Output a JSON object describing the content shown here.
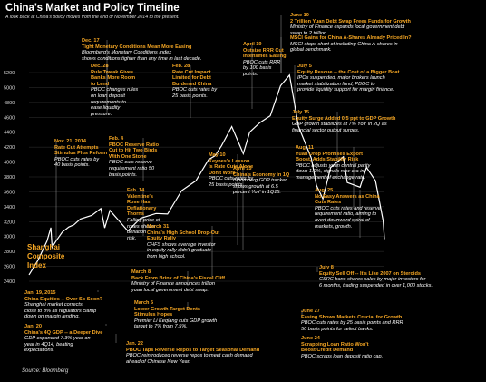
{
  "title": "China's Market and Policy Timeline",
  "subtitle": "A look back at China's policy moves from the end of November 2014 to the present.",
  "source": "Source: Bloomberg",
  "index_label": "Shanghai Composite Index",
  "colors": {
    "line": "#ffffff",
    "accent": "#f5a623",
    "grid": "#333333",
    "leader": "#bbbbbb"
  },
  "chart_data": {
    "type": "line",
    "title": "China's Market and Policy Timeline",
    "xlabel": "",
    "ylabel": "",
    "ylim": [
      2400,
      5200
    ],
    "yticks": [
      2400,
      2600,
      2800,
      3000,
      3200,
      3400,
      3600,
      3800,
      4000,
      4200,
      4400,
      4600,
      4800,
      5000,
      5200
    ],
    "grid": true,
    "series": [
      {
        "name": "Shanghai Composite Index",
        "x": [
          "2014-11-21",
          "2014-11-28",
          "2014-12-05",
          "2014-12-08",
          "2014-12-09",
          "2014-12-12",
          "2014-12-17",
          "2014-12-22",
          "2014-12-26",
          "2014-12-31",
          "2015-01-09",
          "2015-01-16",
          "2015-01-19",
          "2015-01-23",
          "2015-02-06",
          "2015-02-16",
          "2015-02-28",
          "2015-03-09",
          "2015-03-20",
          "2015-03-31",
          "2015-04-10",
          "2015-04-15",
          "2015-04-20",
          "2015-04-28",
          "2015-05-07",
          "2015-05-12",
          "2015-05-20",
          "2015-05-28",
          "2015-06-05",
          "2015-06-12",
          "2015-06-19",
          "2015-06-29",
          "2015-07-03",
          "2015-07-08",
          "2015-07-14",
          "2015-07-24",
          "2015-07-27",
          "2015-08-06",
          "2015-08-11",
          "2015-08-18",
          "2015-08-24",
          "2015-08-25"
        ],
        "values": [
          2486,
          2683,
          2938,
          3120,
          2856,
          2938,
          3061,
          3128,
          3157,
          3235,
          3285,
          3376,
          3116,
          3351,
          3076,
          3246,
          3310,
          3302,
          3617,
          3748,
          4034,
          4084,
          4217,
          4476,
          4112,
          4401,
          4529,
          4620,
          5023,
          5166,
          4478,
          4053,
          3687,
          3507,
          3925,
          4070,
          3725,
          3662,
          3928,
          3749,
          3210,
          2965
        ]
      }
    ],
    "annotations": [
      {
        "date": "Nov. 21, 2014",
        "headline": "Rate Cut Attempts Stimulus Plus Reform",
        "detail": "PBOC cuts rates by 40 basis points."
      },
      {
        "date": "Dec. 17",
        "headline": "Tight Monetary Conditions Mean More Easing",
        "detail": "Bloomberg's Monetary Conditions Index shows conditions tighter than any time in last decade."
      },
      {
        "date": "Dec. 28",
        "headline": "Rule Tweak Gives Banks More Room to Lend",
        "detail": "PBOC changes rules on loan deposit requirements to ease liquidity pressure."
      },
      {
        "date": "Jan. 19, 2015",
        "headline": "China Equities -- Over So Soon?",
        "detail": "Shanghai market corrects close to 8% as regulators clamp down on margin lending."
      },
      {
        "date": "Jan. 20",
        "headline": "China's 4Q GDP -- a Deeper Dive",
        "detail": "GDP expanded 7.3% year on year in 4Q14, beating expectations."
      },
      {
        "date": "Jan. 22",
        "headline": "PBOC Taps Reverse Repos to Target Seasonal Demand",
        "detail": "PBOC reintroduced reverse repos to meet cash demand ahead of Chinese New Year."
      },
      {
        "date": "Feb. 4",
        "headline": "PBOC Reserve Ratio Cut to Hit Two Birds With One Stone",
        "detail": "PBOC cuts reserve requirement ratio 50 basis points."
      },
      {
        "date": "Feb. 14",
        "headline": "Valentine's Rose Has Deflationary Thorns",
        "detail": "Falling price of roses shows deflation risk."
      },
      {
        "date": "Feb. 28",
        "headline": "Rate Cut Impact Limited for Debt Burdened China",
        "detail": "PBOC cuts rates by 25 basis points."
      },
      {
        "date": "March 5",
        "headline": "Lower Growth Target Dents Stimulus Hopes",
        "detail": "Premier Li Keqiang cuts GDP growth target to 7% from 7.5%."
      },
      {
        "date": "March 8",
        "headline": "Back From Brink of China's Fiscal Cliff",
        "detail": "Ministry of Finance announces trillion yuan local government debt swap."
      },
      {
        "date": "March 31",
        "headline": "China's High School Drop-Out Equity Rally",
        "detail": "CHFS shows average investor in equity rally didn't graduate from high school."
      },
      {
        "date": "April 15",
        "headline": "China's Economy in 1Q",
        "detail": "Bloomberg GDP tracker shows growth at 6.5 percent YoY in 1Q15."
      },
      {
        "date": "April 19",
        "headline": "Outsize RRR Cut Intensifies Easing",
        "detail": "PBOC cuts RRR by 100 basis points."
      },
      {
        "date": "May 10",
        "headline": "Keynes's Lesson Is Rate Cuts Alone Don't Work",
        "detail": "PBOC cuts rates by 25 basis points."
      },
      {
        "date": "June 10",
        "headline": "2 Trillion Yuan Debt Swap Frees Funds for Growth",
        "detail": "Ministry of Finance expands local government debt swap to 2 trillion."
      },
      {
        "date": "",
        "headline": "MSCI Gains for China A-Shares Already Priced In?",
        "detail": "MSCI stops short of including China A-shares in global benchmark."
      },
      {
        "date": "June 24",
        "headline": "Scrapping Loan Ratio Won't Boost Credit Demand",
        "detail": "PBOC scraps loan deposit ratio cap."
      },
      {
        "date": "June 27",
        "headline": "Easing Shows Markets Crucial for Growth",
        "detail": "PBOC cuts rates by 25 basis points and RRR 50 basis points for select banks."
      },
      {
        "date": "July 5",
        "headline": "Equity Rescue -- the Cost of a Bigger Boat",
        "detail": "IPOs suspended, major brokers launch market stabilization fund, PBOC to provide liquidity support for margin finance."
      },
      {
        "date": "July 8",
        "headline": "Equity Sell Off -- It's Like 2007 on Steroids",
        "detail": "CSRC bans shares sales by major investors for 6 months, trading suspended in over 1,000 stocks."
      },
      {
        "date": "July 15",
        "headline": "Equity Surge Added 0.5 ppt to GDP Growth",
        "detail": "GDP growth stabilizes at 7% YoY in 2Q as financial sector output surges."
      },
      {
        "date": "Aug. 11",
        "headline": "Yuan Drop Promises Export Boost, Adds Stability Risk",
        "detail": "PBOC adjusts yuan central parity down 1.9%, signals new era in management of exchange rate."
      },
      {
        "date": "Aug. 25",
        "headline": "No Easy Answers as China Cuts Rates",
        "detail": "PBOC cuts rates and reserve requirement ratio, aiming to avert downward spiral of markets, growth."
      }
    ]
  },
  "annotation_lines": [
    {
      "date": "Dec. 17",
      "headline": [
        "Tight Monetary Conditions Mean More Easing"
      ],
      "detail": [
        "Bloomberg's Monetary Conditions Index",
        "shows conditions tighter than any time in last decade."
      ]
    },
    {
      "date": "Dec. 28",
      "headline": [
        "Rule Tweak Gives",
        "Banks More Room",
        "to Lend"
      ],
      "detail": [
        "PBOC changes rules",
        "on loan deposit",
        "requirements to",
        "ease liquidity",
        "pressure."
      ]
    },
    {
      "date": "Feb. 28",
      "headline": [
        "Rate Cut Impact",
        "Limited for Debt",
        "Burdened China"
      ],
      "detail": [
        "PBOC cuts rates by",
        "25 basis points."
      ]
    },
    {
      "date": "April 19",
      "headline": [
        "Outsize RRR Cut",
        "Intensifies Easing"
      ],
      "detail": [
        "PBOC cuts RRR",
        "by 100 basis",
        "points."
      ]
    },
    {
      "date": "June 10",
      "headline": [
        "2 Trillion Yuan Debt Swap Frees Funds for Growth"
      ],
      "detail": [
        "Ministry of Finance expands local government debt",
        "swap to 2 trillion."
      ]
    },
    {
      "date": "",
      "headline": [
        "MSCI Gains for China A-Shares Already Priced In?"
      ],
      "detail": [
        "MSCI stops short of including China A-shares in",
        "global benchmark."
      ]
    },
    {
      "date": "July 5",
      "headline": [
        "Equity Rescue -- the Cost of a Bigger Boat"
      ],
      "detail": [
        "IPOs suspended, major brokers launch",
        "market stabilization fund, PBOC to",
        "provide liquidity support for margin finance."
      ]
    },
    {
      "date": "Nov. 21, 2014",
      "headline": [
        "Rate Cut Attempts",
        "Stimulus Plus Reform"
      ],
      "detail": [
        "PBOC cuts rates by",
        "40 basis points."
      ]
    },
    {
      "date": "Feb. 4",
      "headline": [
        "PBOC Reserve Ratio",
        "Cut to Hit Two Birds",
        "With One Stone"
      ],
      "detail": [
        "PBOC cuts reserve",
        "requirement ratio 50",
        "basis points."
      ]
    },
    {
      "date": "July 15",
      "headline": [
        "Equity Surge Added 0.5 ppt to GDP Growth"
      ],
      "detail": [
        "GDP growth stabilizes at 7% YoY in 2Q as",
        "financial sector output surges."
      ]
    },
    {
      "date": "May 10",
      "headline": [
        "Keynes's Lesson",
        "Is Rate Cuts Alone",
        "Don't Work"
      ],
      "detail": [
        "PBOC cuts rates by",
        "25 basis points."
      ]
    },
    {
      "date": "Aug. 11",
      "headline": [
        "Yuan Drop Promises Export",
        "Boost, Adds Stability Risk"
      ],
      "detail": [
        "PBOC adjusts yuan central parity",
        "down 1.9%, signals new era in",
        "management of exchange rate."
      ]
    },
    {
      "date": "April 15",
      "headline": [
        "China's Economy in 1Q"
      ],
      "detail": [
        "Bloomberg GDP tracker",
        "shows growth at 6.5",
        "percent YoY in 1Q15."
      ]
    },
    {
      "date": "Feb. 14",
      "headline": [
        "Valentine's",
        "Rose Has",
        "Deflationary",
        "Thorns"
      ],
      "detail": [
        "Falling price of",
        "roses shows",
        "deflation",
        "risk."
      ]
    },
    {
      "date": "March 31",
      "headline": [
        "China's High School Drop-Out",
        "Equity Rally"
      ],
      "detail": [
        "CHFS shows average investor",
        "in equity rally didn't graduate",
        "from high school."
      ]
    },
    {
      "date": "Aug. 25",
      "headline": [
        "No Easy Answers as China",
        "Cuts Rates"
      ],
      "detail": [
        "PBOC cuts rates and reserve",
        "requirement ratio, aiming to",
        "avert downward spiral of",
        "markets, growth."
      ]
    },
    {
      "date": "March 8",
      "headline": [
        "Back From Brink of China's Fiscal Cliff"
      ],
      "detail": [
        "Ministry of Finance announces trillion",
        "yuan local government debt swap."
      ]
    },
    {
      "date": "July 8",
      "headline": [
        "Equity Sell Off -- It's Like 2007 on Steroids"
      ],
      "detail": [
        "CSRC bans shares sales by major investors for",
        "6 months, trading suspended in over 1,000 stocks."
      ]
    },
    {
      "date": "Jan. 19, 2015",
      "headline": [
        "China Equities -- Over So Soon?"
      ],
      "detail": [
        "Shanghai market corrects",
        "close to 8% as regulators clamp",
        "down on margin lending."
      ]
    },
    {
      "date": "March 5",
      "headline": [
        "Lower Growth Target Dents",
        "Stimulus Hopes"
      ],
      "detail": [
        "Premier Li Keqiang cuts GDP growth",
        "target to 7% from 7.5%."
      ]
    },
    {
      "date": "June 27",
      "headline": [
        "Easing Shows Markets Crucial for Growth"
      ],
      "detail": [
        "PBOC cuts rates by 25 basis points and RRR",
        "50 basis points for select banks."
      ]
    },
    {
      "date": "Jan. 20",
      "headline": [
        "China's 4Q GDP -- a Deeper Dive"
      ],
      "detail": [
        "GDP expanded 7.3% year on",
        "year in 4Q14, beating",
        "expectations."
      ]
    },
    {
      "date": "Jan. 22",
      "headline": [
        "PBOC Taps Reverse Repos to Target Seasonal Demand"
      ],
      "detail": [
        "PBOC reintroduced reverse repos to meet cash demand",
        "ahead of Chinese New Year."
      ]
    },
    {
      "date": "June 24",
      "headline": [
        "Scrapping Loan Ratio Won't",
        "Boost Credit Demand"
      ],
      "detail": [
        "PBOC scraps loan deposit ratio cap."
      ]
    }
  ]
}
